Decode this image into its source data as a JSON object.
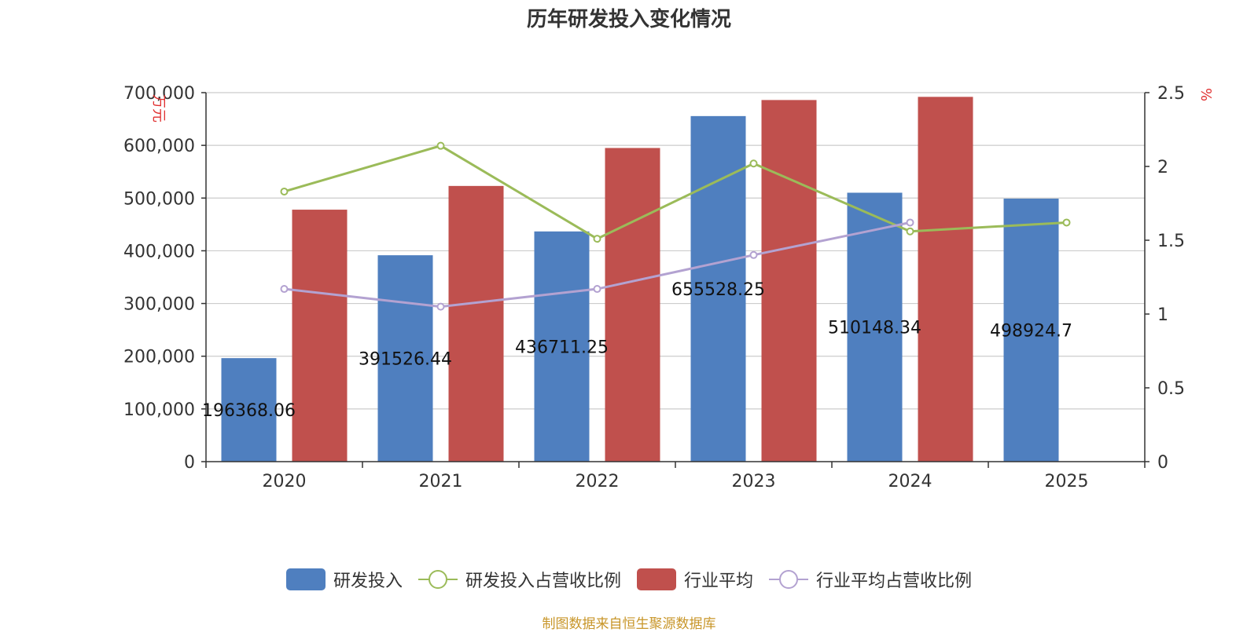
{
  "title": "历年研发投入变化情况",
  "source": "制图数据来自恒生聚源数据库",
  "colors": {
    "rd": "#4f7fbf",
    "rd_ratio": "#9bbb59",
    "ind": "#c0504d",
    "ind_ratio": "#b3a2d1",
    "unit": "#e03030",
    "source": "#c8962a"
  },
  "chart_data": {
    "type": "bar",
    "title": "历年研发投入变化情况",
    "categories": [
      "2020",
      "2021",
      "2022",
      "2023",
      "2024",
      "2025"
    ],
    "ylabel_left": "万元",
    "ylabel_right": "%",
    "ylim_left": [
      0,
      700000
    ],
    "ylim_right": [
      0,
      2.5
    ],
    "yticks_left": [
      "0",
      "100,000",
      "200,000",
      "300,000",
      "400,000",
      "500,000",
      "600,000",
      "700,000"
    ],
    "yticks_right": [
      "0",
      "0.5",
      "1",
      "1.5",
      "2",
      "2.5"
    ],
    "grid": true,
    "legend_position": "bottom",
    "series": [
      {
        "name": "研发投入",
        "type": "bar",
        "axis": "left",
        "values": [
          196368.06,
          391526.44,
          436711.25,
          655528.25,
          510148.34,
          498924.7
        ],
        "labels": [
          "196368.06",
          "391526.44",
          "436711.25",
          "655528.25",
          "510148.34",
          "498924.7"
        ]
      },
      {
        "name": "研发投入占营收比例",
        "type": "line",
        "axis": "right",
        "values": [
          1.83,
          2.14,
          1.51,
          2.02,
          1.56,
          1.62
        ]
      },
      {
        "name": "行业平均",
        "type": "bar",
        "axis": "left",
        "values": [
          478000,
          523000,
          595000,
          686000,
          692000,
          null
        ]
      },
      {
        "name": "行业平均占营收比例",
        "type": "line",
        "axis": "right",
        "values": [
          1.17,
          1.05,
          1.17,
          1.4,
          1.62,
          null
        ]
      }
    ]
  }
}
